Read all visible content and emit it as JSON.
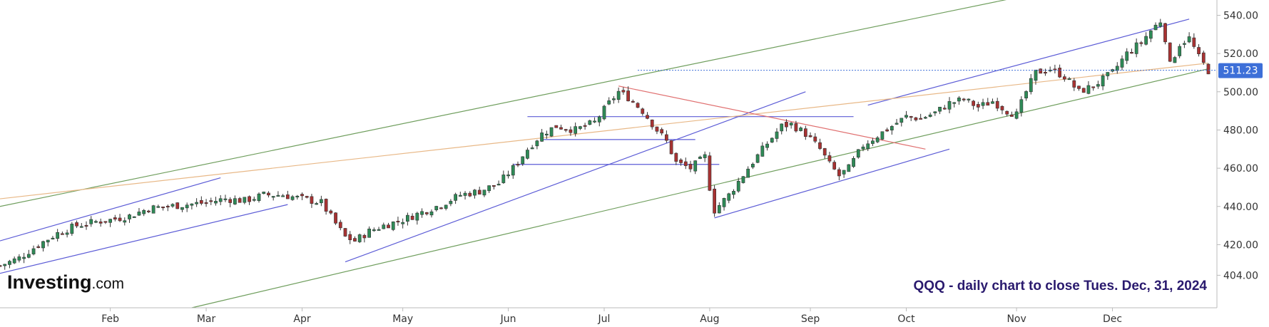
{
  "chart_data": {
    "type": "candlestick",
    "symbol": "QQQ",
    "annotation": "QQQ - daily chart to close Tues. Dec, 31, 2024",
    "last_price": "511.23",
    "y_ticks": [
      "540.00",
      "520.00",
      "500.00",
      "480.00",
      "460.00",
      "440.00",
      "420.00",
      "404.00"
    ],
    "y_tick_values": [
      540,
      520,
      500,
      480,
      460,
      440,
      420,
      404
    ],
    "x_ticks": [
      {
        "label": "Feb",
        "session": 23
      },
      {
        "label": "Mar",
        "session": 43
      },
      {
        "label": "Apr",
        "session": 63
      },
      {
        "label": "May",
        "session": 84
      },
      {
        "label": "Jun",
        "session": 106
      },
      {
        "label": "Jul",
        "session": 126
      },
      {
        "label": "Aug",
        "session": 148
      },
      {
        "label": "Sep",
        "session": 169
      },
      {
        "label": "Oct",
        "session": 189
      },
      {
        "label": "Nov",
        "session": 212
      },
      {
        "label": "Dec",
        "session": 232
      }
    ],
    "ylim": [
      387,
      548
    ],
    "xlim": [
      0,
      252
    ],
    "close_path": [
      [
        0,
        409
      ],
      [
        4,
        413
      ],
      [
        8,
        420
      ],
      [
        12,
        426
      ],
      [
        16,
        430
      ],
      [
        20,
        432
      ],
      [
        23,
        433
      ],
      [
        27,
        435
      ],
      [
        31,
        439
      ],
      [
        35,
        440
      ],
      [
        39,
        441
      ],
      [
        43,
        442
      ],
      [
        47,
        444
      ],
      [
        51,
        443
      ],
      [
        55,
        446
      ],
      [
        59,
        446
      ],
      [
        63,
        444
      ],
      [
        67,
        442
      ],
      [
        70,
        431
      ],
      [
        72,
        424
      ],
      [
        74,
        422
      ],
      [
        77,
        427
      ],
      [
        80,
        430
      ],
      [
        84,
        433
      ],
      [
        88,
        437
      ],
      [
        92,
        441
      ],
      [
        96,
        446
      ],
      [
        100,
        448
      ],
      [
        104,
        452
      ],
      [
        107,
        460
      ],
      [
        110,
        470
      ],
      [
        113,
        478
      ],
      [
        116,
        482
      ],
      [
        120,
        480
      ],
      [
        124,
        484
      ],
      [
        127,
        494
      ],
      [
        129,
        500
      ],
      [
        131,
        497
      ],
      [
        134,
        490
      ],
      [
        137,
        480
      ],
      [
        139,
        474
      ],
      [
        141,
        463
      ],
      [
        144,
        460
      ],
      [
        147,
        466
      ],
      [
        148,
        450
      ],
      [
        149,
        438
      ],
      [
        152,
        446
      ],
      [
        156,
        460
      ],
      [
        160,
        473
      ],
      [
        163,
        482
      ],
      [
        165,
        483
      ],
      [
        168,
        478
      ],
      [
        171,
        470
      ],
      [
        173,
        462
      ],
      [
        175,
        456
      ],
      [
        177,
        460
      ],
      [
        180,
        472
      ],
      [
        183,
        477
      ],
      [
        186,
        482
      ],
      [
        189,
        487
      ],
      [
        192,
        486
      ],
      [
        195,
        489
      ],
      [
        198,
        494
      ],
      [
        201,
        496
      ],
      [
        204,
        492
      ],
      [
        207,
        495
      ],
      [
        210,
        490
      ],
      [
        212,
        488
      ],
      [
        214,
        500
      ],
      [
        216,
        510
      ],
      [
        219,
        512
      ],
      [
        222,
        508
      ],
      [
        225,
        500
      ],
      [
        228,
        503
      ],
      [
        232,
        510
      ],
      [
        235,
        520
      ],
      [
        238,
        526
      ],
      [
        240,
        532
      ],
      [
        242,
        537
      ],
      [
        243,
        528
      ],
      [
        244,
        514
      ],
      [
        246,
        525
      ],
      [
        248,
        528
      ],
      [
        250,
        518
      ],
      [
        252,
        511
      ]
    ],
    "trendlines": [
      {
        "color": "#5b5bd6",
        "p1": [
          0,
          422
        ],
        "p2": [
          46,
          455
        ]
      },
      {
        "color": "#5b5bd6",
        "p1": [
          0,
          405
        ],
        "p2": [
          60,
          441
        ]
      },
      {
        "color": "#5b5bd6",
        "p1": [
          72,
          411
        ],
        "p2": [
          168,
          500
        ]
      },
      {
        "color": "#5b5bd6",
        "p1": [
          149,
          434
        ],
        "p2": [
          198,
          470
        ]
      },
      {
        "color": "#5b5bd6",
        "p1": [
          181,
          493
        ],
        "p2": [
          248,
          538
        ]
      },
      {
        "color": "#5b5bd6",
        "p1": [
          110,
          487
        ],
        "p2": [
          178,
          487
        ]
      },
      {
        "color": "#5b5bd6",
        "p1": [
          113,
          475
        ],
        "p2": [
          145,
          475
        ]
      },
      {
        "color": "#5b5bd6",
        "p1": [
          107,
          462
        ],
        "p2": [
          150,
          462
        ]
      },
      {
        "color": "#6f9e5d",
        "p1": [
          0,
          440
        ],
        "p2": [
          225,
          556
        ]
      },
      {
        "color": "#6f9e5d",
        "p1": [
          40,
          387
        ],
        "p2": [
          252,
          512
        ]
      },
      {
        "color": "#e8b887",
        "p1": [
          0,
          444
        ],
        "p2": [
          252,
          515
        ]
      },
      {
        "color": "#e07070",
        "p1": [
          129,
          503
        ],
        "p2": [
          193,
          470
        ]
      }
    ],
    "colors": {
      "up": "#2e8b57",
      "down": "#a83232",
      "price_tag": "#3d6fd8",
      "axis_text": "#333333",
      "annotation": "#2a1a6e"
    },
    "branding": {
      "name": "Investing",
      "suffix": ".com"
    }
  }
}
